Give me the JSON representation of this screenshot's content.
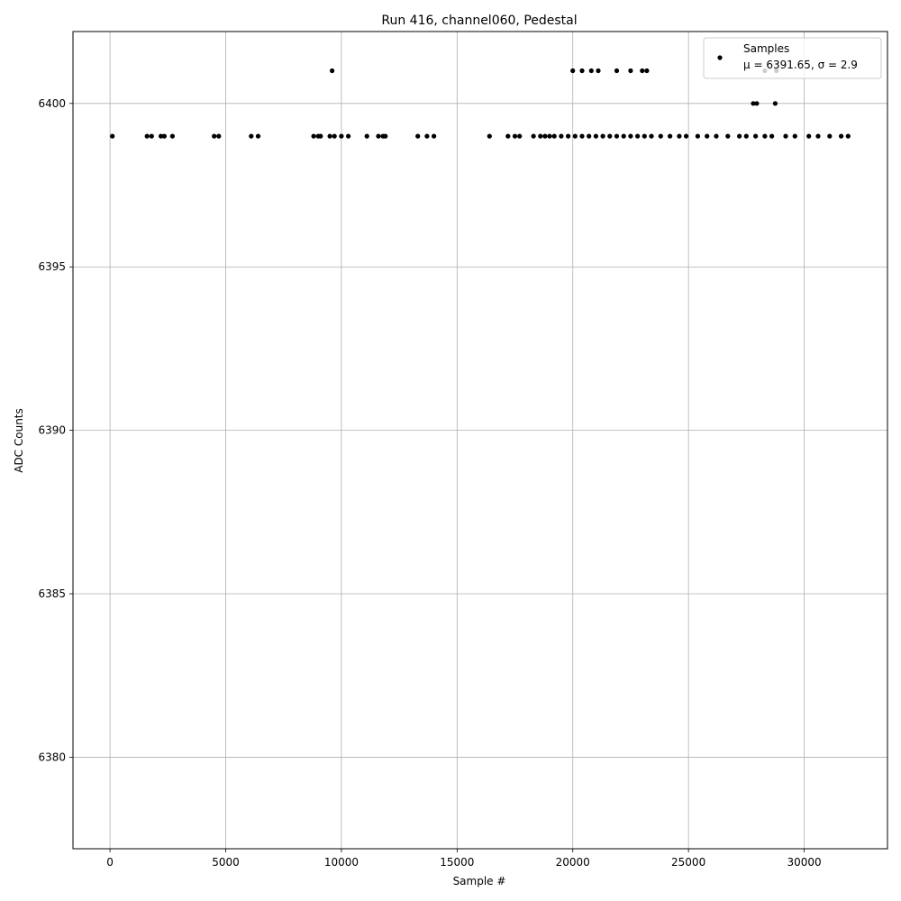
{
  "chart_data": {
    "type": "scatter",
    "title": "Run 416, channel060, Pedestal",
    "xlabel": "Sample #",
    "ylabel": "ADC Counts",
    "xlim": [
      -1600,
      33600
    ],
    "ylim": [
      6377.2,
      6402.2
    ],
    "xticks": [
      0,
      5000,
      10000,
      15000,
      20000,
      25000,
      30000
    ],
    "yticks": [
      6380,
      6385,
      6390,
      6395,
      6400
    ],
    "grid": true,
    "legend": {
      "placement": "top-right",
      "series_name": "Samples",
      "stats_text": "μ = 6391.65, σ = 2.9"
    },
    "marker_color": "#000000",
    "series": [
      {
        "name": "Samples",
        "bands": [
          {
            "y": 6401,
            "x": [
              9600,
              20000,
              20400,
              20800,
              21100,
              21900,
              22500,
              23000,
              23200,
              28300,
              28800
            ]
          },
          {
            "y": 6400,
            "x": [
              27800,
              27950,
              28750
            ]
          },
          {
            "y": 6399,
            "x": [
              100,
              1600,
              1800,
              2200,
              2350,
              2700,
              4500,
              4700,
              6100,
              6400,
              8800,
              9000,
              9100,
              9500,
              9700,
              10000,
              10300,
              11100,
              11600,
              11800,
              11900,
              13300,
              13700,
              14000,
              16400,
              17200,
              17500,
              17700,
              18300,
              18600,
              18800,
              19000,
              19200,
              19500,
              19800,
              20100,
              20400,
              20700,
              21000,
              21300,
              21600,
              21900,
              22200,
              22500,
              22800,
              23100,
              23400,
              23800,
              24200,
              24600,
              24900,
              25400,
              25800,
              26200,
              26700,
              27200,
              27500,
              27900,
              28300,
              28600,
              29200,
              29600,
              30200,
              30600,
              31100,
              31600,
              31900
            ]
          }
        ]
      }
    ]
  }
}
